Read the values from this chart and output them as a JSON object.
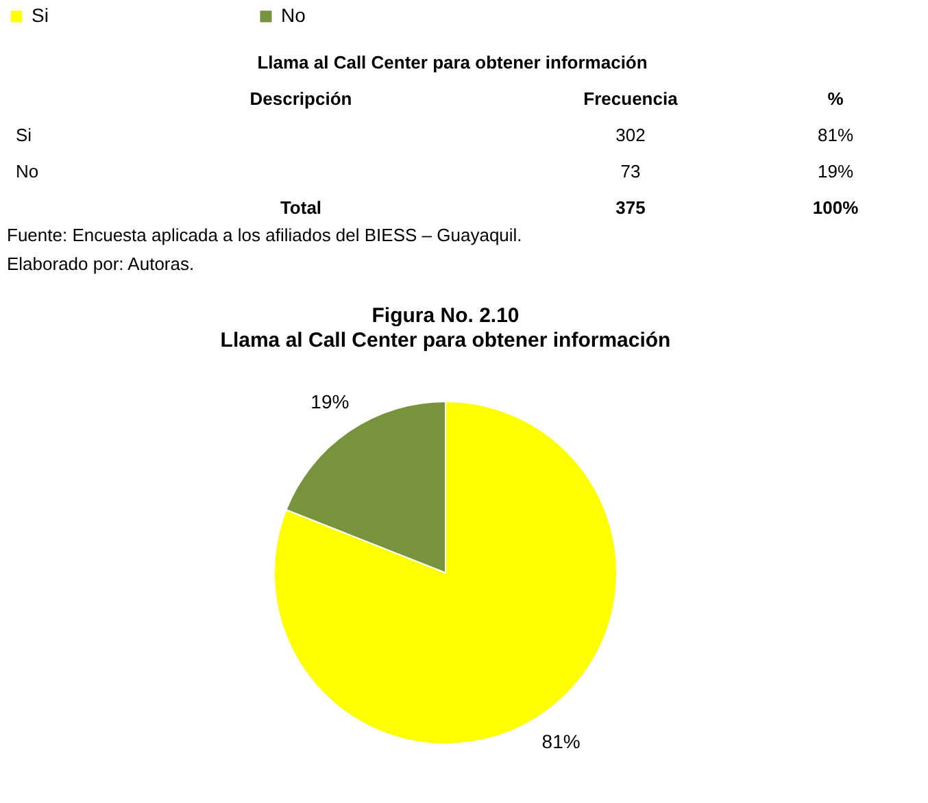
{
  "chart_data": {
    "type": "pie",
    "title": "Figura No. 2.10",
    "subtitle": "Llama al Call Center para obtener información",
    "categories": [
      "Si",
      "No"
    ],
    "values": [
      81,
      19
    ],
    "colors": [
      "#ffff00",
      "#77933c"
    ],
    "value_labels": [
      "81%",
      "19%"
    ],
    "legend": "top",
    "annotations": [
      "Llama al Call Center para obtener información",
      "Descripción",
      "Frecuencia",
      "%",
      "Si",
      "302",
      "81%",
      "No",
      "73",
      "19%",
      "Total",
      "375",
      "100%",
      "Fuente: Encuesta aplicada a los afiliados del BIESS – Guayaquil.",
      "Elaborado por: Autoras."
    ]
  }
}
